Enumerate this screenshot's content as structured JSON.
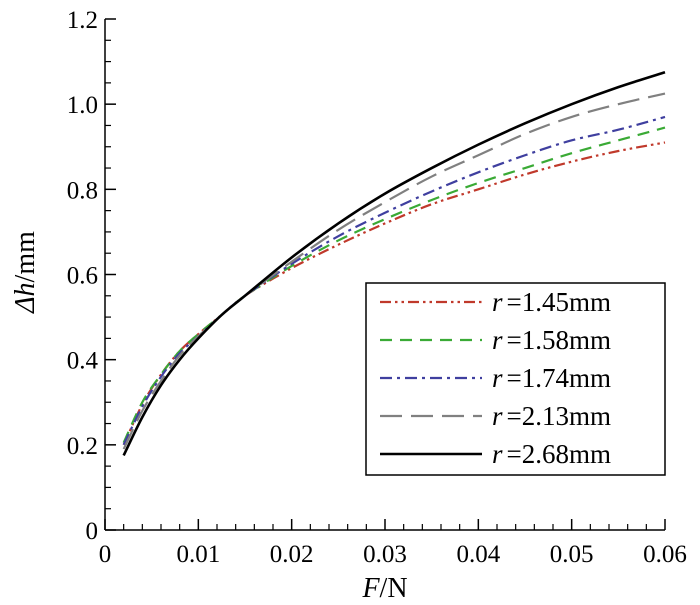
{
  "chart_data": {
    "type": "line",
    "xlabel_var": "F",
    "xlabel_unit": "/N",
    "ylabel_var": "Δh",
    "ylabel_unit": "/mm",
    "xlim": [
      0,
      0.06
    ],
    "ylim": [
      0,
      1.2
    ],
    "xticks": [
      "0",
      "0.01",
      "0.02",
      "0.03",
      "0.04",
      "0.05",
      "0.06"
    ],
    "yticks": [
      "0",
      "0.2",
      "0.4",
      "0.6",
      "0.8",
      "1.0",
      "1.2"
    ],
    "grid": false,
    "legend_position": "bottom-right",
    "series": [
      {
        "name": "r =1.45mm",
        "var": "r",
        "value_label": "=1.45mm",
        "color": "#c0392b",
        "dash": "dash-dot-dot",
        "x": [
          0.002,
          0.004,
          0.006,
          0.008,
          0.01,
          0.0125,
          0.015,
          0.02,
          0.025,
          0.03,
          0.035,
          0.04,
          0.045,
          0.05,
          0.055,
          0.06
        ],
        "y": [
          0.2,
          0.295,
          0.365,
          0.42,
          0.46,
          0.505,
          0.55,
          0.615,
          0.67,
          0.72,
          0.765,
          0.8,
          0.835,
          0.865,
          0.89,
          0.91
        ]
      },
      {
        "name": "r =1.58mm",
        "var": "r",
        "value_label": "=1.58mm",
        "color": "#3aaa35",
        "dash": "dash",
        "x": [
          0.002,
          0.004,
          0.006,
          0.008,
          0.01,
          0.0125,
          0.015,
          0.02,
          0.025,
          0.03,
          0.035,
          0.04,
          0.045,
          0.05,
          0.055,
          0.06
        ],
        "y": [
          0.205,
          0.3,
          0.365,
          0.42,
          0.46,
          0.505,
          0.55,
          0.62,
          0.68,
          0.73,
          0.775,
          0.815,
          0.85,
          0.885,
          0.915,
          0.945
        ]
      },
      {
        "name": "r =1.74mm",
        "var": "r",
        "value_label": "=1.74mm",
        "color": "#3f3f9f",
        "dash": "dash-dot",
        "x": [
          0.002,
          0.004,
          0.006,
          0.008,
          0.01,
          0.0125,
          0.015,
          0.02,
          0.025,
          0.03,
          0.035,
          0.04,
          0.045,
          0.05,
          0.055,
          0.06
        ],
        "y": [
          0.2,
          0.29,
          0.36,
          0.415,
          0.455,
          0.505,
          0.55,
          0.625,
          0.69,
          0.745,
          0.795,
          0.84,
          0.88,
          0.915,
          0.94,
          0.97
        ]
      },
      {
        "name": "r =2.13mm",
        "var": "r",
        "value_label": "=2.13mm",
        "color": "#808080",
        "dash": "long-dash",
        "x": [
          0.002,
          0.004,
          0.006,
          0.008,
          0.01,
          0.0125,
          0.015,
          0.02,
          0.025,
          0.03,
          0.035,
          0.04,
          0.045,
          0.05,
          0.055,
          0.06
        ],
        "y": [
          0.19,
          0.28,
          0.35,
          0.41,
          0.455,
          0.505,
          0.55,
          0.63,
          0.705,
          0.77,
          0.83,
          0.88,
          0.93,
          0.97,
          1.0,
          1.025
        ]
      },
      {
        "name": "r =2.68mm",
        "var": "r",
        "value_label": "=2.68mm",
        "color": "#000000",
        "dash": "solid",
        "x": [
          0.002,
          0.004,
          0.006,
          0.008,
          0.01,
          0.0125,
          0.015,
          0.02,
          0.025,
          0.03,
          0.035,
          0.04,
          0.045,
          0.05,
          0.055,
          0.06
        ],
        "y": [
          0.175,
          0.265,
          0.34,
          0.4,
          0.45,
          0.505,
          0.55,
          0.64,
          0.72,
          0.79,
          0.85,
          0.905,
          0.955,
          1.0,
          1.04,
          1.075
        ]
      }
    ]
  }
}
